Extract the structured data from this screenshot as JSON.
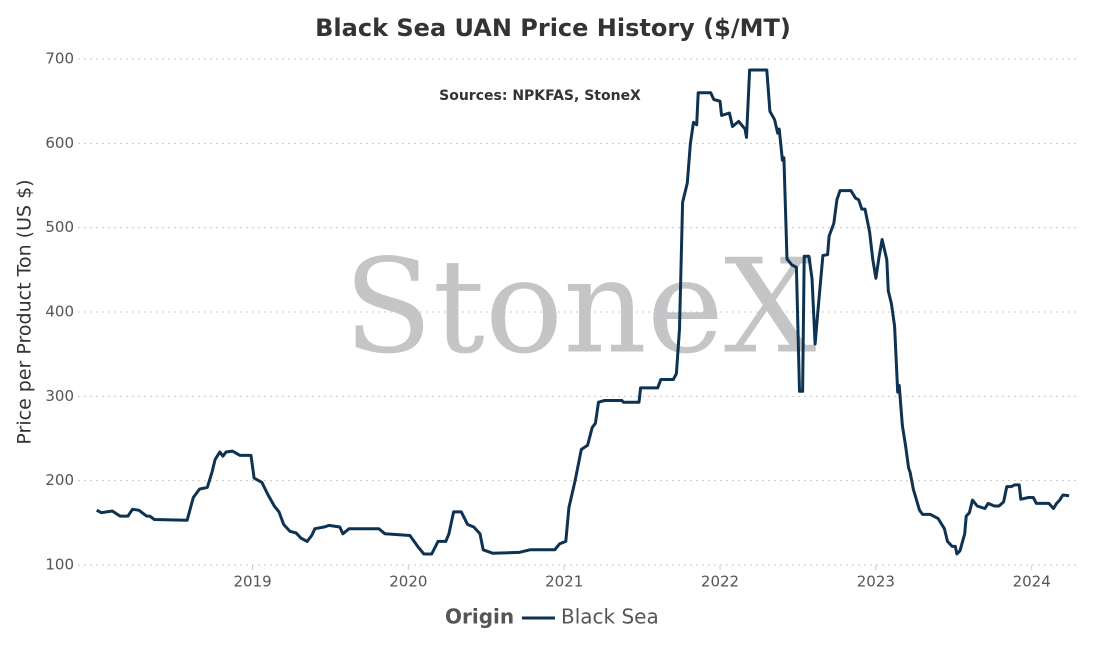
{
  "chart_data": {
    "type": "line",
    "title": "Black Sea UAN Price History ($/MT)",
    "annotation": "Sources: NPKFAS, StoneX",
    "watermark": "StoneX",
    "y_label": "Price per Product Ton (US $)",
    "legend_title": "Origin",
    "legend": "bottom",
    "grid": true,
    "xlim": [
      2017.88,
      2024.31
    ],
    "xticks": [
      2019,
      2020,
      2021,
      2022,
      2023,
      2024
    ],
    "ylim": [
      100,
      700
    ],
    "yticks": [
      100,
      200,
      300,
      400,
      500,
      600,
      700
    ],
    "x": [
      2018.0,
      2018.03,
      2018.1,
      2018.15,
      2018.2,
      2018.23,
      2018.27,
      2018.32,
      2018.34,
      2018.37,
      2018.58,
      2018.62,
      2018.66,
      2018.71,
      2018.74,
      2018.76,
      2018.79,
      2018.81,
      2018.83,
      2018.87,
      2018.92,
      2018.99,
      2019.01,
      2019.06,
      2019.1,
      2019.14,
      2019.17,
      2019.2,
      2019.24,
      2019.28,
      2019.31,
      2019.35,
      2019.38,
      2019.4,
      2019.46,
      2019.49,
      2019.56,
      2019.58,
      2019.62,
      2019.81,
      2019.85,
      2020.01,
      2020.06,
      2020.1,
      2020.15,
      2020.19,
      2020.24,
      2020.26,
      2020.29,
      2020.34,
      2020.38,
      2020.42,
      2020.46,
      2020.48,
      2020.54,
      2020.71,
      2020.78,
      2020.94,
      2020.97,
      2021.01,
      2021.03,
      2021.07,
      2021.11,
      2021.15,
      2021.18,
      2021.2,
      2021.22,
      2021.26,
      2021.37,
      2021.38,
      2021.48,
      2021.49,
      2021.6,
      2021.62,
      2021.7,
      2021.72,
      2021.74,
      2021.76,
      2021.79,
      2021.81,
      2021.83,
      2021.85,
      2021.86,
      2021.94,
      2021.96,
      2022.0,
      2022.01,
      2022.06,
      2022.08,
      2022.12,
      2022.16,
      2022.17,
      2022.19,
      2022.3,
      2022.32,
      2022.35,
      2022.37,
      2022.38,
      2022.4,
      2022.41,
      2022.43,
      2022.46,
      2022.49,
      2022.51,
      2022.53,
      2022.54,
      2022.57,
      2022.59,
      2022.61,
      2022.63,
      2022.66,
      2022.69,
      2022.7,
      2022.73,
      2022.75,
      2022.77,
      2022.84,
      2022.87,
      2022.89,
      2022.91,
      2022.93,
      2022.96,
      2022.98,
      2023.0,
      2023.02,
      2023.04,
      2023.07,
      2023.08,
      2023.1,
      2023.12,
      2023.14,
      2023.15,
      2023.17,
      2023.19,
      2023.21,
      2023.22,
      2023.24,
      2023.28,
      2023.3,
      2023.35,
      2023.38,
      2023.4,
      2023.44,
      2023.46,
      2023.49,
      2023.51,
      2023.52,
      2023.54,
      2023.57,
      2023.58,
      2023.6,
      2023.62,
      2023.65,
      2023.7,
      2023.72,
      2023.76,
      2023.79,
      2023.82,
      2023.84,
      2023.87,
      2023.89,
      2023.92,
      2023.93,
      2023.98,
      2024.01,
      2024.03,
      2024.11,
      2024.14,
      2024.16,
      2024.18,
      2024.2,
      2024.24
    ],
    "series": [
      {
        "name": "Black Sea",
        "color": "#0e3251",
        "values": [
          165,
          162,
          164,
          158,
          158,
          166,
          165,
          158,
          158,
          154,
          153,
          180,
          190,
          192,
          210,
          225,
          234,
          229,
          234,
          235,
          230,
          230,
          203,
          198,
          183,
          170,
          163,
          148,
          140,
          138,
          132,
          128,
          135,
          143,
          145,
          147,
          145,
          137,
          143,
          143,
          137,
          135,
          122,
          113,
          113,
          128,
          128,
          137,
          163,
          163,
          148,
          145,
          137,
          118,
          114,
          115,
          118,
          118,
          125,
          128,
          168,
          200,
          237,
          242,
          263,
          268,
          293,
          295,
          295,
          293,
          293,
          310,
          310,
          320,
          320,
          327,
          380,
          530,
          553,
          600,
          625,
          622,
          660,
          660,
          652,
          650,
          633,
          636,
          620,
          626,
          617,
          607,
          687,
          687,
          638,
          628,
          612,
          617,
          580,
          583,
          463,
          456,
          453,
          306,
          306,
          466,
          466,
          440,
          362,
          405,
          467,
          468,
          490,
          505,
          533,
          544,
          544,
          535,
          533,
          522,
          522,
          495,
          463,
          440,
          465,
          486,
          462,
          425,
          410,
          383,
          305,
          313,
          265,
          242,
          215,
          210,
          190,
          165,
          160,
          160,
          157,
          155,
          143,
          128,
          122,
          122,
          113,
          117,
          137,
          158,
          162,
          177,
          170,
          167,
          173,
          170,
          170,
          175,
          193,
          193,
          195,
          195,
          178,
          180,
          180,
          173,
          173,
          167,
          173,
          177,
          183,
          182
        ]
      }
    ]
  }
}
